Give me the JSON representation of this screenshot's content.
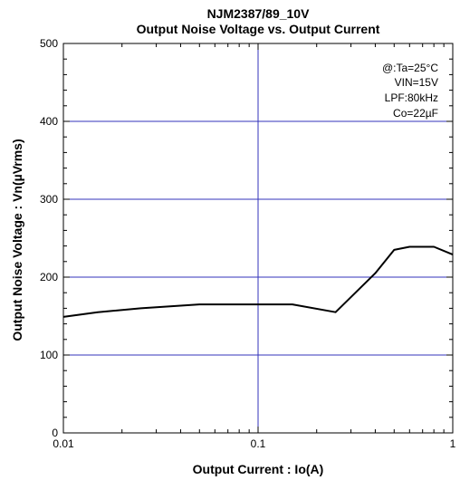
{
  "chart_data": {
    "type": "line",
    "title": "NJM2387/89_10V",
    "subtitle": "Output Noise Voltage vs. Output Current",
    "xlabel": "Output Current : Io(A)",
    "ylabel": "Output Noise Voltage : Vn(µVrms)",
    "xscale": "log",
    "xlim": [
      0.01,
      1
    ],
    "ylim": [
      0,
      500
    ],
    "xticks": [
      0.01,
      0.1,
      1
    ],
    "xtick_labels": [
      "0.01",
      "0.1",
      "1"
    ],
    "yticks": [
      0,
      100,
      200,
      300,
      400,
      500
    ],
    "ytick_labels": [
      "0",
      "100",
      "200",
      "300",
      "400",
      "500"
    ],
    "grid": true,
    "colors": {
      "grid": "#3333bb",
      "line": "#000000",
      "axis": "#000000"
    },
    "annotation": [
      "@:Ta=25°C",
      "VIN=15V",
      "LPF:80kHz",
      "Co=22µF"
    ],
    "series": [
      {
        "x": [
          0.01,
          0.015,
          0.025,
          0.05,
          0.1,
          0.15,
          0.25,
          0.4,
          0.5,
          0.6,
          0.8,
          1.0
        ],
        "values": [
          149,
          155,
          160,
          165,
          165,
          165,
          155,
          205,
          235,
          239,
          239,
          229
        ]
      }
    ]
  }
}
